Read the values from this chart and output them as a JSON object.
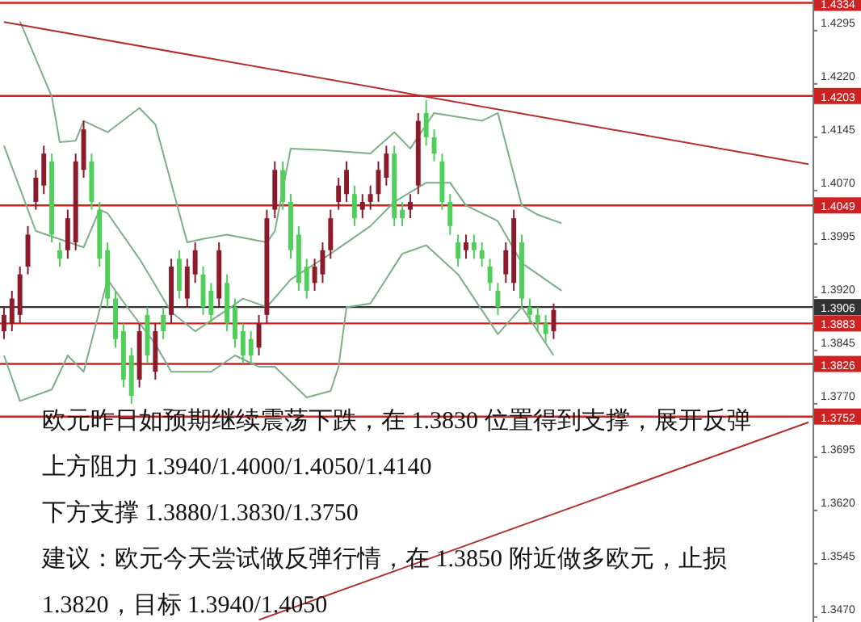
{
  "chart_data": {
    "type": "candlestick",
    "categories": [
      null,
      null,
      null,
      null,
      null,
      null,
      null,
      null,
      null,
      null,
      null,
      null,
      null,
      null,
      null,
      null,
      null,
      null,
      null,
      null,
      null,
      null,
      null,
      null,
      null,
      null,
      null,
      null,
      null,
      null,
      null,
      null,
      null,
      null,
      null,
      null,
      null,
      null,
      null,
      null,
      null,
      null,
      null,
      null,
      null,
      null,
      null,
      null,
      null,
      null,
      null,
      null,
      null,
      null,
      null,
      null,
      null,
      null,
      null,
      null,
      null,
      null,
      null,
      null,
      null,
      null,
      null,
      null,
      null,
      null,
      null,
      null,
      null,
      null,
      null,
      null,
      null,
      null,
      null,
      null,
      null,
      null,
      null,
      null,
      null,
      null,
      null,
      null,
      null,
      null,
      null,
      null,
      null,
      null,
      null,
      null,
      null,
      null,
      null,
      null,
      null,
      null
    ],
    "ohlc": [
      [
        1.3872,
        1.3906,
        1.3861,
        1.3895
      ],
      [
        1.3883,
        1.3929,
        1.3872,
        1.3918
      ],
      [
        1.3895,
        1.3963,
        1.3883,
        1.3952
      ],
      [
        1.3963,
        1.402,
        1.3952,
        1.4008
      ],
      [
        1.4054,
        1.4099,
        1.4043,
        1.4088
      ],
      [
        1.4077,
        1.4133,
        1.4065,
        1.4122
      ],
      [
        1.4111,
        1.4122,
        1.3997,
        1.4008
      ],
      [
        1.3986,
        1.3997,
        1.3963,
        1.3974
      ],
      [
        1.3986,
        1.4043,
        1.3974,
        1.4031
      ],
      [
        1.3997,
        1.4122,
        1.3986,
        1.4111
      ],
      [
        1.4099,
        1.4168,
        1.4088,
        1.4156
      ],
      [
        1.4111,
        1.4122,
        1.4043,
        1.4054
      ],
      [
        1.4043,
        1.4054,
        1.3963,
        1.3974
      ],
      [
        1.3986,
        1.3997,
        1.3906,
        1.3918
      ],
      [
        1.3918,
        1.3929,
        1.3849,
        1.3861
      ],
      [
        1.3872,
        1.3883,
        1.3793,
        1.3804
      ],
      [
        1.3838,
        1.3849,
        1.377,
        1.3781
      ],
      [
        1.3804,
        1.3883,
        1.3793,
        1.3872
      ],
      [
        1.3895,
        1.3906,
        1.3827,
        1.3838
      ],
      [
        1.3815,
        1.3883,
        1.3804,
        1.3872
      ],
      [
        1.3895,
        1.3906,
        1.3861,
        1.3872
      ],
      [
        1.3895,
        1.3974,
        1.3883,
        1.3963
      ],
      [
        1.3974,
        1.3986,
        1.3918,
        1.3929
      ],
      [
        1.3918,
        1.3974,
        1.3906,
        1.3963
      ],
      [
        1.3952,
        1.3997,
        1.394,
        1.3986
      ],
      [
        1.3952,
        1.3963,
        1.3895,
        1.3906
      ],
      [
        1.3929,
        1.394,
        1.3883,
        1.3895
      ],
      [
        1.3918,
        1.3997,
        1.3906,
        1.3986
      ],
      [
        1.394,
        1.3952,
        1.3872,
        1.3883
      ],
      [
        1.3906,
        1.3918,
        1.3849,
        1.3861
      ],
      [
        1.3872,
        1.3883,
        1.3827,
        1.3838
      ],
      [
        1.3861,
        1.3872,
        1.3827,
        1.3838
      ],
      [
        1.3849,
        1.3895,
        1.3838,
        1.3883
      ],
      [
        1.3895,
        1.4043,
        1.3883,
        1.4031
      ],
      [
        1.4043,
        1.4111,
        1.4031,
        1.4099
      ],
      [
        1.4099,
        1.4111,
        1.4043,
        1.4054
      ],
      [
        1.4054,
        1.4065,
        1.3974,
        1.3986
      ],
      [
        1.4008,
        1.402,
        1.3929,
        1.394
      ],
      [
        1.3963,
        1.3974,
        1.3918,
        1.3929
      ],
      [
        1.394,
        1.3974,
        1.3929,
        1.3963
      ],
      [
        1.3952,
        1.3997,
        1.394,
        1.3986
      ],
      [
        1.3986,
        1.4043,
        1.3974,
        1.4031
      ],
      [
        1.4054,
        1.4088,
        1.4043,
        1.4077
      ],
      [
        1.4065,
        1.4111,
        1.4054,
        1.4099
      ],
      [
        1.4065,
        1.4077,
        1.402,
        1.4031
      ],
      [
        1.4043,
        1.4065,
        1.4031,
        1.4054
      ],
      [
        1.4054,
        1.4077,
        1.4043,
        1.4065
      ],
      [
        1.4065,
        1.4111,
        1.4054,
        1.4099
      ],
      [
        1.4088,
        1.4133,
        1.4077,
        1.4122
      ],
      [
        1.4122,
        1.4133,
        1.402,
        1.4031
      ],
      [
        1.4043,
        1.4054,
        1.402,
        1.4031
      ],
      [
        1.4043,
        1.4065,
        1.4031,
        1.4054
      ],
      [
        1.4077,
        1.4179,
        1.4065,
        1.4168
      ],
      [
        1.4179,
        1.4197,
        1.4133,
        1.4145
      ],
      [
        1.4145,
        1.4156,
        1.4111,
        1.4122
      ],
      [
        1.4111,
        1.4122,
        1.4043,
        1.4054
      ],
      [
        1.4054,
        1.4065,
        1.4008,
        1.402
      ],
      [
        1.3997,
        1.4008,
        1.3963,
        1.3974
      ],
      [
        1.3986,
        1.4008,
        1.3974,
        1.3997
      ],
      [
        1.3997,
        1.4008,
        1.3974,
        1.3986
      ],
      [
        1.3986,
        1.3997,
        1.3963,
        1.3974
      ],
      [
        1.3963,
        1.3974,
        1.3929,
        1.394
      ],
      [
        1.3929,
        1.394,
        1.3895,
        1.3906
      ],
      [
        1.3952,
        1.3997,
        1.394,
        1.3986
      ],
      [
        1.394,
        1.4043,
        1.3929,
        1.4031
      ],
      [
        1.3997,
        1.4008,
        1.3906,
        1.3918
      ],
      [
        1.3906,
        1.3918,
        1.3883,
        1.3895
      ],
      [
        1.3895,
        1.3906,
        1.3872,
        1.3883
      ],
      [
        1.3883,
        1.3895,
        1.3856,
        1.3868
      ],
      [
        1.3872,
        1.3911,
        1.3861,
        1.3902
      ],
      null,
      null,
      null,
      null,
      null,
      null,
      null,
      null,
      null,
      null,
      null,
      null,
      null,
      null,
      null,
      null,
      null,
      null,
      null,
      null,
      null,
      null,
      null,
      null,
      null,
      null,
      null,
      null,
      null,
      null,
      null,
      null
    ],
    "colors": [
      "#8b1a2b",
      "#8b1a2b",
      "#8b1a2b",
      "#8b1a2b",
      "#8b1a2b",
      "#8b1a2b",
      "#4fcf5a",
      "#4fcf5a",
      "#8b1a2b",
      "#8b1a2b",
      "#8b1a2b",
      "#4fcf5a",
      "#4fcf5a",
      "#4fcf5a",
      "#4fcf5a",
      "#4fcf5a",
      "#4fcf5a",
      "#8b1a2b",
      "#4fcf5a",
      "#8b1a2b",
      "#4fcf5a",
      "#8b1a2b",
      "#4fcf5a",
      "#8b1a2b",
      "#8b1a2b",
      "#4fcf5a",
      "#4fcf5a",
      "#8b1a2b",
      "#4fcf5a",
      "#4fcf5a",
      "#4fcf5a",
      "#4fcf5a",
      "#8b1a2b",
      "#8b1a2b",
      "#8b1a2b",
      "#4fcf5a",
      "#4fcf5a",
      "#4fcf5a",
      "#4fcf5a",
      "#8b1a2b",
      "#8b1a2b",
      "#8b1a2b",
      "#8b1a2b",
      "#8b1a2b",
      "#4fcf5a",
      "#8b1a2b",
      "#8b1a2b",
      "#8b1a2b",
      "#8b1a2b",
      "#4fcf5a",
      "#4fcf5a",
      "#8b1a2b",
      "#8b1a2b",
      "#4fcf5a",
      "#4fcf5a",
      "#4fcf5a",
      "#4fcf5a",
      "#4fcf5a",
      "#8b1a2b",
      "#4fcf5a",
      "#4fcf5a",
      "#4fcf5a",
      "#4fcf5a",
      "#8b1a2b",
      "#8b1a2b",
      "#4fcf5a",
      "#4fcf5a",
      "#4fcf5a",
      "#4fcf5a",
      "#8b1a2b",
      null,
      null,
      null,
      null,
      null,
      null,
      null,
      null,
      null,
      null,
      null,
      null,
      null,
      null,
      null,
      null,
      null,
      null,
      null,
      null,
      null,
      null,
      null,
      null,
      null,
      null,
      null,
      null,
      null,
      null,
      null,
      null
    ],
    "series": [
      {
        "type": "line",
        "color": "#7fae8a",
        "values": [
          null,
          null,
          1.4308,
          null,
          null,
          null,
          1.4202,
          1.4138,
          null,
          1.414,
          1.4168,
          null,
          null,
          1.4152,
          null,
          null,
          null,
          1.4186,
          null,
          1.4163,
          null,
          null,
          null,
          1.3997,
          null,
          1.4002,
          null,
          null,
          1.4008,
          null,
          null,
          null,
          null,
          1.3997,
          1.4013,
          null,
          1.4129,
          null,
          null,
          null,
          1.4127,
          null,
          null,
          null,
          null,
          null,
          1.4122,
          null,
          null,
          1.4152,
          null,
          1.4129,
          null,
          null,
          1.4179,
          null,
          null,
          null,
          null,
          null,
          1.4168,
          null,
          1.4179,
          null,
          null,
          1.4049,
          null,
          1.4036,
          null,
          null,
          1.4024,
          null,
          null,
          null,
          null,
          null,
          null,
          null,
          null,
          null,
          null,
          null,
          null,
          null,
          null,
          null,
          null,
          null,
          null,
          null,
          null,
          null,
          null,
          null,
          null,
          null,
          null,
          null,
          null,
          null,
          null,
          null
        ]
      },
      {
        "type": "line",
        "color": "#7fae8a",
        "values": [
          1.4133,
          null,
          null,
          null,
          1.4013,
          null,
          null,
          null,
          null,
          null,
          1.399,
          null,
          1.4043,
          1.4038,
          null,
          null,
          null,
          1.3974,
          null,
          null,
          null,
          1.3899,
          null,
          null,
          1.3872,
          null,
          null,
          null,
          1.3902,
          null,
          1.3918,
          null,
          null,
          1.3906,
          null,
          null,
          1.3945,
          null,
          null,
          null,
          null,
          1.3981,
          null,
          null,
          null,
          null,
          1.402,
          null,
          null,
          1.4054,
          null,
          null,
          null,
          1.4081,
          null,
          null,
          1.4081,
          null,
          1.4049,
          null,
          null,
          null,
          1.4027,
          null,
          null,
          1.3968,
          null,
          null,
          null,
          null,
          1.3929,
          null,
          null,
          null,
          null,
          null,
          null,
          null,
          null,
          null,
          null,
          null,
          null,
          null,
          null,
          null,
          null,
          null,
          null,
          null,
          null,
          null,
          null,
          null,
          null,
          null,
          null,
          null,
          null,
          null,
          null,
          null
        ]
      },
      {
        "type": "line",
        "color": "#7fae8a",
        "values": [
          1.3838,
          null,
          1.3774,
          null,
          null,
          null,
          1.379,
          null,
          1.3838,
          null,
          1.3815,
          null,
          null,
          1.3945,
          null,
          1.3913,
          null,
          null,
          null,
          1.3854,
          null,
          1.3815,
          null,
          null,
          null,
          null,
          1.3815,
          null,
          null,
          1.3838,
          null,
          null,
          1.3822,
          null,
          1.3822,
          null,
          null,
          null,
          1.3779,
          null,
          null,
          1.3788,
          1.3822,
          1.3906,
          null,
          null,
          1.3911,
          null,
          null,
          null,
          1.3981,
          null,
          null,
          1.3993,
          null,
          null,
          null,
          1.3952,
          null,
          null,
          null,
          null,
          1.3868,
          null,
          null,
          1.3906,
          null,
          null,
          null,
          1.3838,
          null,
          null,
          null,
          null,
          null,
          null,
          null,
          null,
          null,
          null,
          null,
          null,
          null,
          null,
          null,
          null,
          null,
          null,
          null,
          null,
          null,
          null,
          null,
          null,
          null,
          null,
          null,
          null,
          null,
          null,
          null,
          null
        ]
      },
      {
        "type": "line",
        "color": "#b03030",
        "values": [
          1.4307,
          null,
          null,
          null,
          null,
          null,
          null,
          null,
          null,
          null,
          null,
          null,
          null,
          null,
          null,
          null,
          null,
          null,
          null,
          null,
          null,
          null,
          null,
          null,
          null,
          null,
          null,
          null,
          null,
          null,
          null,
          null,
          null,
          null,
          null,
          null,
          null,
          null,
          null,
          null,
          null,
          null,
          null,
          null,
          null,
          null,
          null,
          null,
          null,
          null,
          null,
          null,
          null,
          null,
          null,
          null,
          null,
          null,
          null,
          null,
          null,
          null,
          null,
          null,
          null,
          null,
          null,
          null,
          null,
          null,
          null,
          null,
          null,
          null,
          null,
          null,
          null,
          null,
          null,
          null,
          null,
          null,
          null,
          null,
          null,
          null,
          null,
          null,
          null,
          null,
          null,
          null,
          null,
          null,
          null,
          null,
          null,
          null,
          null,
          null,
          null,
          1.4107
        ]
      },
      {
        "type": "line",
        "color": "#b03030",
        "values": [
          null,
          null,
          null,
          null,
          null,
          null,
          null,
          null,
          null,
          null,
          null,
          null,
          null,
          null,
          null,
          null,
          null,
          null,
          null,
          null,
          null,
          null,
          null,
          null,
          null,
          null,
          null,
          null,
          null,
          null,
          null,
          null,
          1.3466,
          null,
          null,
          null,
          null,
          null,
          null,
          null,
          null,
          null,
          null,
          null,
          null,
          null,
          null,
          null,
          null,
          null,
          null,
          null,
          null,
          null,
          null,
          null,
          null,
          null,
          null,
          null,
          null,
          null,
          null,
          null,
          null,
          null,
          null,
          null,
          null,
          null,
          null,
          null,
          null,
          null,
          null,
          null,
          null,
          null,
          null,
          null,
          null,
          null,
          null,
          null,
          null,
          null,
          null,
          null,
          null,
          null,
          null,
          null,
          null,
          null,
          null,
          null,
          null,
          null,
          null,
          null,
          null,
          1.3744
        ]
      }
    ],
    "ylim": [
      1.3463,
      1.4338
    ],
    "yticks": [
      {
        "value": 1.347,
        "label": "1.3470"
      },
      {
        "value": 1.3545,
        "label": "1.3545"
      },
      {
        "value": 1.362,
        "label": "1.3620"
      },
      {
        "value": 1.3695,
        "label": "1.3695"
      },
      {
        "value": 1.377,
        "label": "1.3770"
      },
      {
        "value": 1.3845,
        "label": "1.3845"
      },
      {
        "value": 1.392,
        "label": "1.3920"
      },
      {
        "value": 1.3995,
        "label": "1.3995"
      },
      {
        "value": 1.407,
        "label": "1.4070"
      },
      {
        "value": 1.4145,
        "label": "1.4145"
      },
      {
        "value": 1.422,
        "label": "1.4220"
      },
      {
        "value": 1.4295,
        "label": "1.4295"
      }
    ],
    "tick_labels": "y",
    "ref_lines": [
      {
        "axis": "y",
        "value": 1.4334,
        "label": "1.4334",
        "color": "#cc2222"
      },
      {
        "axis": "y",
        "value": 1.4203,
        "label": "1.4203",
        "color": "#cc2222"
      },
      {
        "axis": "y",
        "value": 1.4049,
        "label": "1.4049",
        "color": "#cc2222"
      },
      {
        "axis": "y",
        "value": 1.3906,
        "label": "1.3906",
        "color": "#333333"
      },
      {
        "axis": "y",
        "value": 1.3883,
        "label": "1.3883",
        "color": "#cc2222"
      },
      {
        "axis": "y",
        "value": 1.3826,
        "label": "1.3826",
        "color": "#cc2222"
      },
      {
        "axis": "y",
        "value": 1.3752,
        "label": "1.3752",
        "color": "#cc2222"
      }
    ],
    "annotations": [
      "欧元昨日如预期继续震荡下跌，在 1.3830 位置得到支撑，展开反弹",
      "上方阻力 1.3940/1.4000/1.4050/1.4140",
      "下方支撑 1.3880/1.3830/1.3750",
      "建议：欧元今天尝试做反弹行情，在 1.3850 附近做多欧元，止损",
      "1.3820，目标 1.3940/1.4050"
    ]
  }
}
